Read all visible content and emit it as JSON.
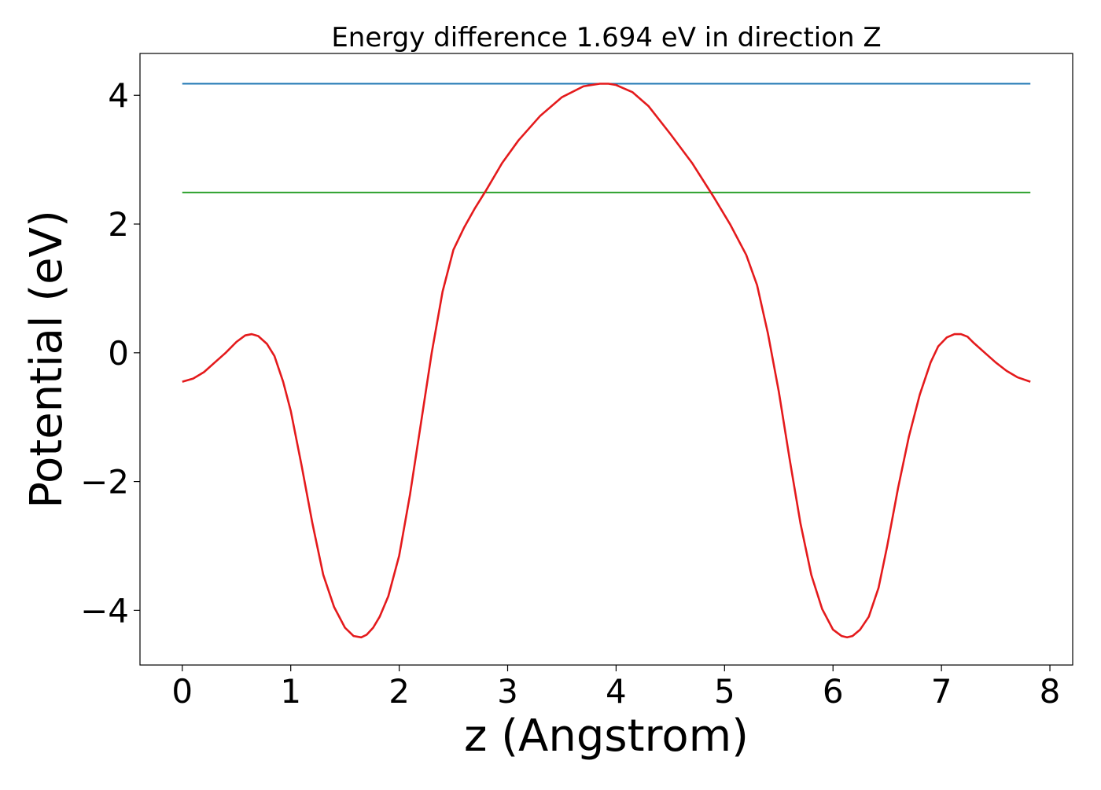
{
  "chart_data": {
    "type": "line",
    "title": "Energy difference 1.694 eV in direction Z",
    "xlabel": "z (Angstrom)",
    "ylabel": "Potential (eV)",
    "xlim": [
      -0.39,
      8.21
    ],
    "ylim": [
      -4.85,
      4.65
    ],
    "x_ticks": [
      0,
      1,
      2,
      3,
      4,
      5,
      6,
      7,
      8
    ],
    "y_ticks": [
      -4,
      -2,
      0,
      2,
      4
    ],
    "x_tick_labels": [
      "0",
      "1",
      "2",
      "3",
      "4",
      "5",
      "6",
      "7",
      "8"
    ],
    "y_tick_labels": [
      "−4",
      "−2",
      "0",
      "2",
      "4"
    ],
    "grid": false,
    "legend": false,
    "series": [
      {
        "color": "#1f77b4",
        "x": [
          0,
          7.82
        ],
        "y": [
          4.18,
          4.18
        ]
      },
      {
        "color": "#2ca02c",
        "x": [
          0,
          7.82
        ],
        "y": [
          2.49,
          2.49
        ]
      },
      {
        "color": "#e41a1c",
        "x": [
          0,
          0.1,
          0.2,
          0.3,
          0.4,
          0.5,
          0.58,
          0.64,
          0.7,
          0.78,
          0.85,
          0.93,
          1.0,
          1.1,
          1.2,
          1.3,
          1.4,
          1.5,
          1.58,
          1.65,
          1.7,
          1.76,
          1.82,
          1.9,
          2.0,
          2.1,
          2.2,
          2.3,
          2.4,
          2.5,
          2.6,
          2.7,
          2.8,
          2.95,
          3.1,
          3.3,
          3.5,
          3.7,
          3.85,
          3.93,
          4.0,
          4.15,
          4.3,
          4.5,
          4.7,
          4.9,
          5.05,
          5.2,
          5.3,
          5.4,
          5.5,
          5.6,
          5.7,
          5.8,
          5.9,
          6.0,
          6.08,
          6.13,
          6.18,
          6.25,
          6.33,
          6.42,
          6.5,
          6.6,
          6.7,
          6.8,
          6.9,
          6.97,
          7.05,
          7.12,
          7.18,
          7.24,
          7.3,
          7.4,
          7.5,
          7.6,
          7.7,
          7.82
        ],
        "y": [
          -0.45,
          -0.4,
          -0.3,
          -0.15,
          0.0,
          0.17,
          0.27,
          0.29,
          0.26,
          0.14,
          -0.05,
          -0.45,
          -0.9,
          -1.75,
          -2.65,
          -3.45,
          -3.95,
          -4.27,
          -4.4,
          -4.42,
          -4.38,
          -4.27,
          -4.1,
          -3.78,
          -3.15,
          -2.2,
          -1.1,
          0.0,
          0.95,
          1.6,
          1.95,
          2.25,
          2.52,
          2.95,
          3.3,
          3.68,
          3.97,
          4.14,
          4.18,
          4.18,
          4.16,
          4.05,
          3.83,
          3.4,
          2.95,
          2.42,
          2.0,
          1.52,
          1.05,
          0.3,
          -0.6,
          -1.65,
          -2.65,
          -3.45,
          -3.98,
          -4.3,
          -4.4,
          -4.42,
          -4.4,
          -4.3,
          -4.1,
          -3.65,
          -3.0,
          -2.1,
          -1.3,
          -0.65,
          -0.15,
          0.1,
          0.24,
          0.29,
          0.29,
          0.25,
          0.15,
          0.0,
          -0.15,
          -0.28,
          -0.38,
          -0.45
        ]
      }
    ]
  }
}
